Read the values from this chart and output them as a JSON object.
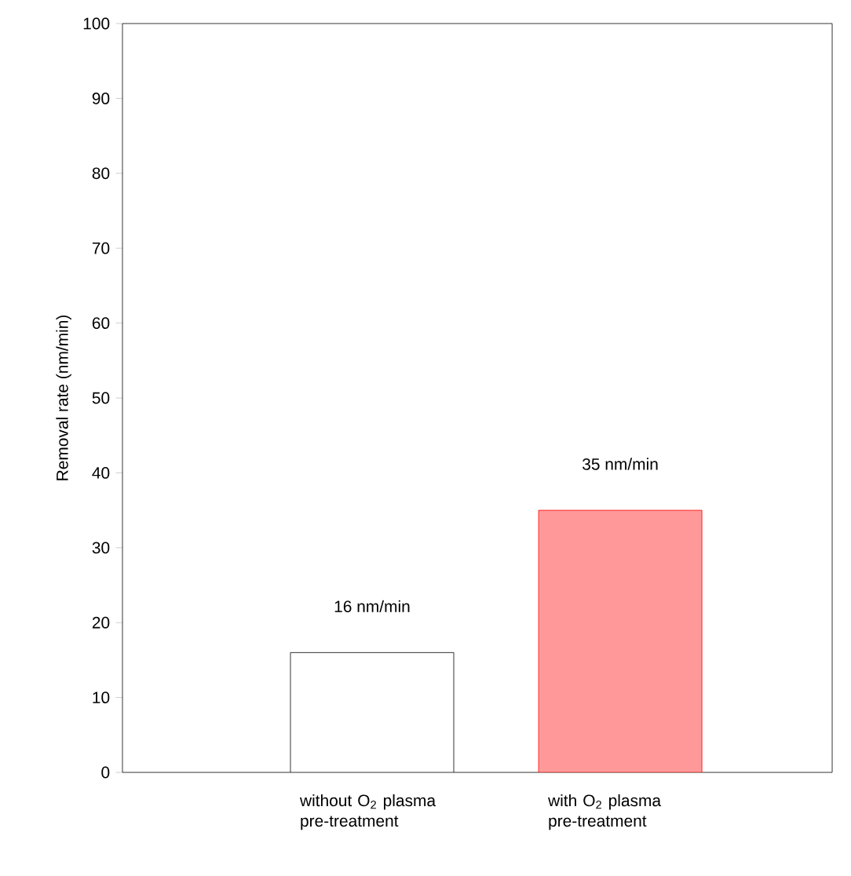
{
  "chart_data": {
    "type": "bar",
    "ylabel": "Removal rate (nm/min)",
    "categories": [
      "without O$_{2}$ plasma pre-treatment",
      "with O$_{2}$ plasma pre-treatment"
    ],
    "values": [
      16,
      35
    ],
    "colors": [
      "#ffffff",
      "#ff0000"
    ],
    "value_labels": [
      "16 nm/min",
      "35 nm/min"
    ],
    "ylim": [
      0,
      100
    ],
    "yticks": [
      0,
      10,
      20,
      30,
      40,
      50,
      60,
      70,
      80,
      90,
      100
    ]
  }
}
